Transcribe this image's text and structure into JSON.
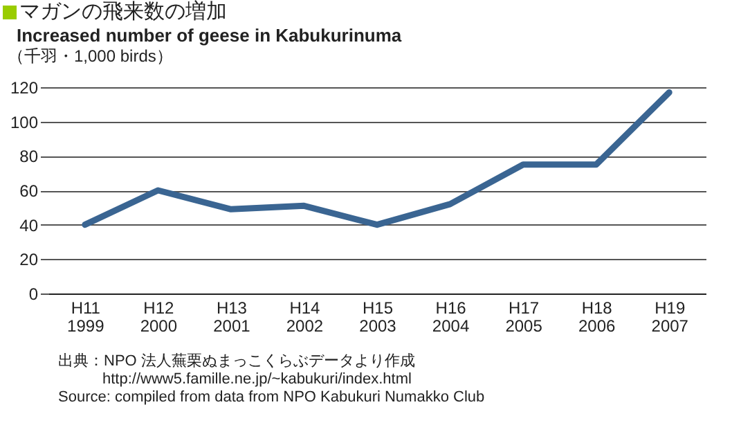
{
  "chart_data": {
    "type": "line",
    "title": "マガンの飛来数の増加",
    "subtitle": "Increased number of  geese in Kabukurinuma",
    "ylabel": "（千羽・1,000 birds）",
    "categories": [
      "H11\n1999",
      "H12\n2000",
      "H13\n2001",
      "H14\n2002",
      "H15\n2003",
      "H16\n2004",
      "H17\n2005",
      "H18\n2006",
      "H19\n2007"
    ],
    "series": [
      {
        "color": "#3a6592",
        "values": [
          40,
          60,
          49,
          51,
          40,
          52,
          75,
          75,
          117
        ]
      }
    ],
    "ylim": [
      0,
      120
    ],
    "yticks": [
      0,
      20,
      40,
      60,
      80,
      100,
      120
    ],
    "grid": "y",
    "legend": false,
    "marker": "none",
    "line_style": "solid",
    "annotations": [
      "出典：NPO 法人蕪栗ぬまっこくらぶデータより作成",
      "http://www5.famille.ne.jp/~kabukuri/index.html",
      "Source: compiled from data from NPO Kabukuri Numakko Club"
    ]
  }
}
